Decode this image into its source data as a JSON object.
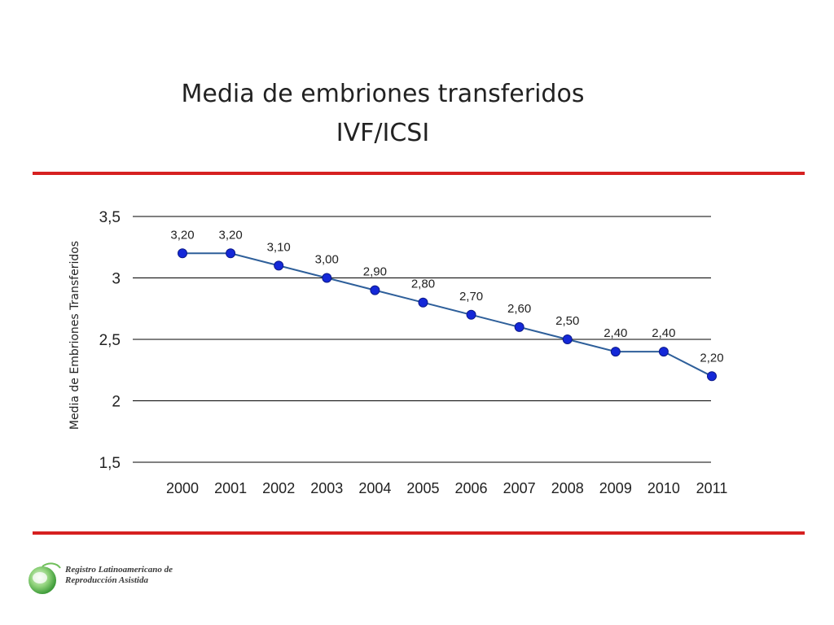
{
  "colors": {
    "rule": "#d62020",
    "line": "#2e5f9a",
    "marker": "#1428d8",
    "grid": "#000000",
    "text": "#222222"
  },
  "title": {
    "line1": "Media de embriones transferidos",
    "line2": "IVF/ICSI"
  },
  "chart_data": {
    "type": "line",
    "title": "Media de embriones transferidos IVF/ICSI",
    "xlabel": "",
    "ylabel": "Media de Embriones Transferidos",
    "categories": [
      "2000",
      "2001",
      "2002",
      "2003",
      "2004",
      "2005",
      "2006",
      "2007",
      "2008",
      "2009",
      "2010",
      "2011"
    ],
    "series": [
      {
        "name": "Media de Embriones Transferidos",
        "values": [
          3.2,
          3.2,
          3.1,
          3.0,
          2.9,
          2.8,
          2.7,
          2.6,
          2.5,
          2.4,
          2.4,
          2.2
        ],
        "labels": [
          "3,20",
          "3,20",
          "3,10",
          "3,00",
          "2,90",
          "2,80",
          "2,70",
          "2,60",
          "2,50",
          "2,40",
          "2,40",
          "2,20"
        ]
      }
    ],
    "yticks": [
      3.5,
      3,
      2.5,
      2,
      1.5
    ],
    "ytick_labels": [
      "3,5",
      "3",
      "2,5",
      "2",
      "1,5"
    ],
    "ylim": [
      1.5,
      3.5
    ],
    "grid": true,
    "legend": "none"
  },
  "logo": {
    "icon": "registry-globe-icon",
    "line1": "Registro Latinoamericano de",
    "line2": "Reproducción Asistida"
  }
}
